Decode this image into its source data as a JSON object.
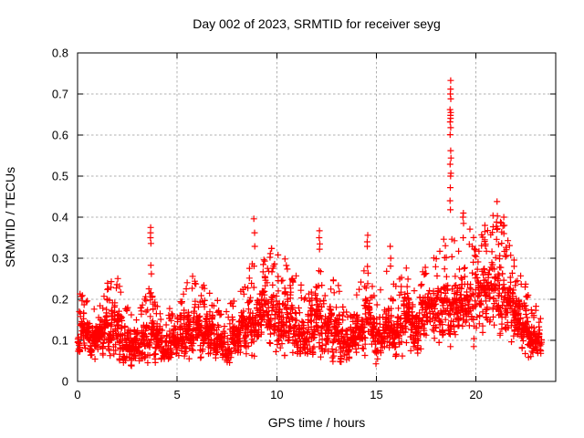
{
  "chart_data": {
    "type": "scatter",
    "title": "Day 002 of 2023, SRMTID for receiver seyg",
    "xlabel": "GPS time / hours",
    "ylabel": "SRMTID / TECUs",
    "xlim": [
      0,
      24
    ],
    "ylim": [
      0,
      0.8
    ],
    "xticks": [
      0,
      5,
      10,
      15,
      20
    ],
    "xtick_labels": [
      "0",
      "5",
      "10",
      "15",
      "20"
    ],
    "yticks": [
      0,
      0.1,
      0.2,
      0.3,
      0.4,
      0.5,
      0.6,
      0.7,
      0.8
    ],
    "ytick_labels": [
      "0",
      "0.1",
      "0.2",
      "0.3",
      "0.4",
      "0.5",
      "0.6",
      "0.7",
      "0.8"
    ],
    "grid": true,
    "legend": "none",
    "marker": "plus",
    "marker_size": 7,
    "marker_color": "#ff0000",
    "grid_color": "#b0b0b0",
    "axis_color": "#000000",
    "background_color": "#ffffff",
    "seed": 20230102,
    "t_start": 0.02,
    "t_end": 23.3,
    "epoch_step": 0.04,
    "points_per_epoch": [
      3,
      7
    ],
    "band": [
      [
        0.0,
        0.06,
        0.2
      ],
      [
        0.3,
        0.07,
        0.23
      ],
      [
        0.7,
        0.05,
        0.17
      ],
      [
        1.0,
        0.05,
        0.19
      ],
      [
        1.5,
        0.06,
        0.24
      ],
      [
        1.9,
        0.05,
        0.28
      ],
      [
        2.3,
        0.04,
        0.2
      ],
      [
        2.8,
        0.04,
        0.17
      ],
      [
        3.2,
        0.05,
        0.19
      ],
      [
        3.6,
        0.05,
        0.23
      ],
      [
        4.0,
        0.04,
        0.2
      ],
      [
        4.5,
        0.04,
        0.17
      ],
      [
        5.0,
        0.05,
        0.21
      ],
      [
        5.5,
        0.06,
        0.25
      ],
      [
        6.0,
        0.06,
        0.27
      ],
      [
        6.5,
        0.05,
        0.22
      ],
      [
        7.0,
        0.05,
        0.2
      ],
      [
        7.5,
        0.04,
        0.18
      ],
      [
        8.0,
        0.05,
        0.24
      ],
      [
        8.5,
        0.06,
        0.27
      ],
      [
        9.0,
        0.07,
        0.3
      ],
      [
        9.5,
        0.08,
        0.34
      ],
      [
        10.0,
        0.07,
        0.31
      ],
      [
        10.5,
        0.07,
        0.3
      ],
      [
        11.0,
        0.06,
        0.26
      ],
      [
        11.5,
        0.06,
        0.22
      ],
      [
        12.0,
        0.07,
        0.29
      ],
      [
        12.5,
        0.07,
        0.3
      ],
      [
        13.0,
        0.05,
        0.25
      ],
      [
        13.5,
        0.04,
        0.17
      ],
      [
        14.0,
        0.05,
        0.21
      ],
      [
        14.5,
        0.06,
        0.29
      ],
      [
        15.0,
        0.05,
        0.21
      ],
      [
        15.5,
        0.06,
        0.27
      ],
      [
        16.0,
        0.05,
        0.24
      ],
      [
        16.5,
        0.08,
        0.28
      ],
      [
        17.0,
        0.07,
        0.26
      ],
      [
        17.5,
        0.08,
        0.31
      ],
      [
        18.0,
        0.08,
        0.34
      ],
      [
        18.5,
        0.1,
        0.37
      ],
      [
        19.0,
        0.1,
        0.36
      ],
      [
        19.5,
        0.1,
        0.4
      ],
      [
        20.0,
        0.1,
        0.34
      ],
      [
        20.5,
        0.12,
        0.38
      ],
      [
        21.0,
        0.12,
        0.42
      ],
      [
        21.5,
        0.1,
        0.37
      ],
      [
        22.0,
        0.08,
        0.29
      ],
      [
        22.5,
        0.06,
        0.24
      ],
      [
        23.0,
        0.05,
        0.19
      ],
      [
        23.3,
        0.06,
        0.17
      ]
    ],
    "spikes": [
      {
        "t": 3.68,
        "values": [
          0.375,
          0.362,
          0.35,
          0.336,
          0.283,
          0.262
        ]
      },
      {
        "t": 8.87,
        "values": [
          0.396,
          0.362,
          0.329,
          0.281,
          0.229
        ]
      },
      {
        "t": 12.15,
        "values": [
          0.367,
          0.35,
          0.335,
          0.322
        ]
      },
      {
        "t": 14.55,
        "values": [
          0.356,
          0.34,
          0.329
        ]
      },
      {
        "t": 15.7,
        "values": [
          0.329,
          0.3,
          0.281
        ]
      },
      {
        "t": 18.72,
        "values": [
          0.733,
          0.712,
          0.7,
          0.688,
          0.662,
          0.655,
          0.648,
          0.641,
          0.632,
          0.618,
          0.601,
          0.562,
          0.544,
          0.529,
          0.507,
          0.5,
          0.472,
          0.44,
          0.418
        ]
      },
      {
        "t": 19.35,
        "values": [
          0.41,
          0.4,
          0.385,
          0.35
        ]
      },
      {
        "t": 20.45,
        "values": [
          0.38,
          0.365,
          0.345,
          0.33
        ]
      },
      {
        "t": 21.05,
        "values": [
          0.438,
          0.403,
          0.388,
          0.37,
          0.346
        ]
      },
      {
        "t": 21.4,
        "values": [
          0.4,
          0.38,
          0.36
        ]
      }
    ]
  }
}
